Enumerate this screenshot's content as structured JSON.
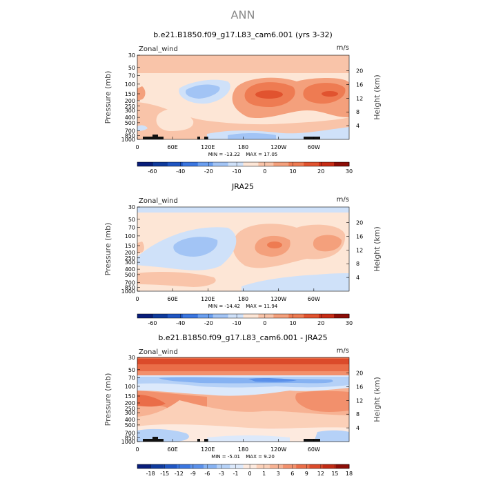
{
  "figure": {
    "title": "ANN"
  },
  "chart_data": [
    {
      "type": "contour",
      "title": "b.e21.B1850.f09_g17.L83_cam6.001 (yrs 3-32)",
      "variable_label": "Zonal_wind",
      "units": "m/s",
      "ylabel": "Pressure (mb)",
      "ylabel_right": "Height (km)",
      "x_ticks": [
        "0",
        "60E",
        "120E",
        "180",
        "120W",
        "60W"
      ],
      "y_ticks": [
        "30",
        "50",
        "70",
        "100",
        "150",
        "200",
        "250",
        "300",
        "400",
        "500",
        "700",
        "850",
        "1000"
      ],
      "height_ticks": [
        "20",
        "16",
        "12",
        "8",
        "4"
      ],
      "stats": {
        "min_label": "MIN =",
        "min": "-13.22",
        "max_label": "MAX =",
        "max": "17.05"
      },
      "colorbar": {
        "labels": [
          "-60",
          "-40",
          "-20",
          "-10",
          "0",
          "10",
          "20",
          "30"
        ],
        "colors": [
          "#081d7a",
          "#0f3a9c",
          "#1f55c2",
          "#3a76e0",
          "#6a9ff0",
          "#a2c4f5",
          "#cfe1f9",
          "#fde6d6",
          "#f9c4a9",
          "#f4a07c",
          "#ee7b52",
          "#e1532f",
          "#c72c15",
          "#8c0d07"
        ]
      }
    },
    {
      "type": "contour",
      "title": "JRA25",
      "variable_label": "Zonal_wind",
      "units": "m/s",
      "ylabel": "Pressure (mb)",
      "ylabel_right": "Height (km)",
      "x_ticks": [
        "0",
        "60E",
        "120E",
        "180",
        "120W",
        "60W"
      ],
      "y_ticks": [
        "30",
        "50",
        "70",
        "100",
        "150",
        "200",
        "250",
        "300",
        "400",
        "500",
        "700",
        "850",
        "1000"
      ],
      "height_ticks": [
        "20",
        "16",
        "12",
        "8",
        "4"
      ],
      "stats": {
        "min_label": "MIN =",
        "min": "-14.42",
        "max_label": "MAX =",
        "max": "11.94"
      },
      "colorbar": {
        "labels": [
          "-60",
          "-40",
          "-20",
          "-10",
          "0",
          "10",
          "20",
          "30"
        ],
        "colors": [
          "#081d7a",
          "#0f3a9c",
          "#1f55c2",
          "#3a76e0",
          "#6a9ff0",
          "#a2c4f5",
          "#cfe1f9",
          "#fde6d6",
          "#f9c4a9",
          "#f4a07c",
          "#ee7b52",
          "#e1532f",
          "#c72c15",
          "#8c0d07"
        ]
      }
    },
    {
      "type": "contour",
      "title": "b.e21.B1850.f09_g17.L83_cam6.001 - JRA25",
      "variable_label": "Zonal_wind",
      "units": "m/s",
      "ylabel": "Pressure (mb)",
      "ylabel_right": "Height (km)",
      "x_ticks": [
        "0",
        "60E",
        "120E",
        "180",
        "120W",
        "60W"
      ],
      "y_ticks": [
        "30",
        "50",
        "70",
        "100",
        "150",
        "200",
        "250",
        "300",
        "400",
        "500",
        "700",
        "850",
        "1000"
      ],
      "height_ticks": [
        "20",
        "16",
        "12",
        "8",
        "4"
      ],
      "stats": {
        "min_label": "MIN =",
        "min": "-5.01",
        "max_label": "MAX =",
        "max": "9.20"
      },
      "colorbar": {
        "labels": [
          "-18",
          "-15",
          "-12",
          "-9",
          "-6",
          "-3",
          "-1",
          "0",
          "1",
          "3",
          "6",
          "9",
          "12",
          "15",
          "18"
        ],
        "colors": [
          "#081d7a",
          "#0f3a9c",
          "#1f55c2",
          "#3a76e0",
          "#5a90ea",
          "#86b2f2",
          "#b5d1f7",
          "#dce9fb",
          "#fdeadf",
          "#fbd0b8",
          "#f7b293",
          "#f2906c",
          "#ea6d48",
          "#db4a2a",
          "#c02a14",
          "#8c0d07"
        ]
      }
    }
  ]
}
